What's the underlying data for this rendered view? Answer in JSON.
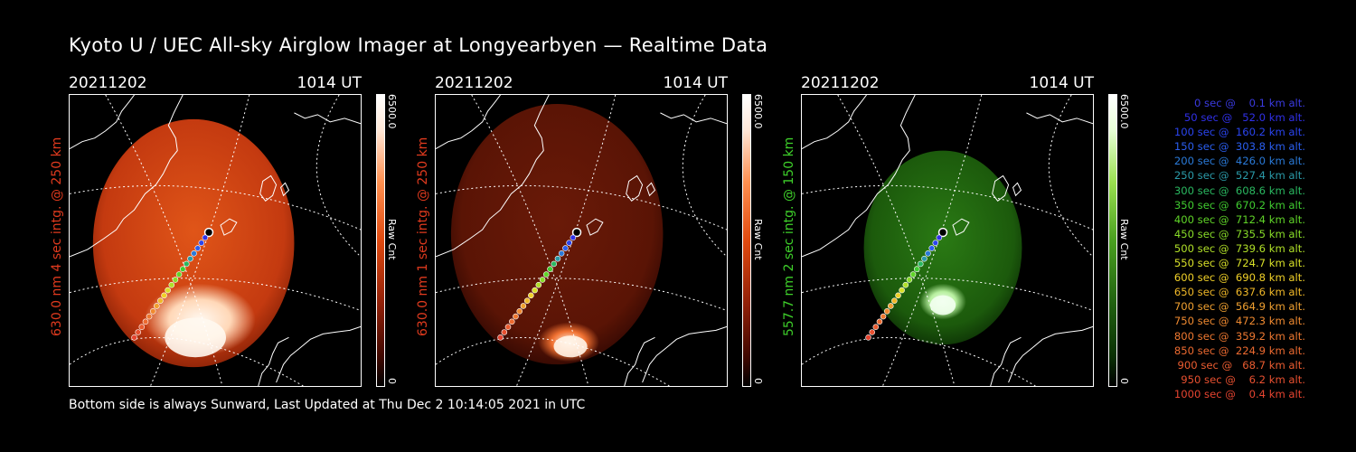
{
  "title": "Kyoto U / UEC All-sky Airglow Imager at Longyearbyen — Realtime Data",
  "footer": "Bottom side is always Sunward, Last Updated at Thu Dec  2 10:14:05 2021 in UTC",
  "colors": {
    "red_label": "#e03a1e",
    "green_label": "#3ecf2a"
  },
  "panels": [
    {
      "date": "20211202",
      "time": "1014 UT",
      "side_label": "630.0 nm  4 sec intg. @ 250 km",
      "colorbar_max": "6500.0",
      "colorbar_unit": "Raw Cnt",
      "colorbar_min": "0",
      "scheme": "red-bright",
      "label_color": "#e03a1e"
    },
    {
      "date": "20211202",
      "time": "1014 UT",
      "side_label": "630.0 nm  1 sec intg. @ 250 km",
      "colorbar_max": "6500.0",
      "colorbar_unit": "Raw Cnt",
      "colorbar_min": "0",
      "scheme": "red-dim",
      "label_color": "#e03a1e"
    },
    {
      "date": "20211202",
      "time": "1014 UT",
      "side_label": "557.7 nm  2 sec intg. @ 150 km",
      "colorbar_max": "6500.0",
      "colorbar_unit": "Raw Cnt",
      "colorbar_min": "0",
      "scheme": "green",
      "label_color": "#3ecf2a"
    }
  ],
  "legend": [
    {
      "text": "   0 sec @    0.1 km alt.",
      "color": "#3a3ae0"
    },
    {
      "text": "  50 sec @   52.0 km alt.",
      "color": "#3030e8"
    },
    {
      "text": " 100 sec @  160.2 km alt.",
      "color": "#2a44ee"
    },
    {
      "text": " 150 sec @  303.8 km alt.",
      "color": "#2a5ef0"
    },
    {
      "text": " 200 sec @  426.0 km alt.",
      "color": "#2a7ad8"
    },
    {
      "text": " 250 sec @  527.4 km alt.",
      "color": "#2a9aa8"
    },
    {
      "text": " 300 sec @  608.6 km alt.",
      "color": "#2ab860"
    },
    {
      "text": " 350 sec @  670.2 km alt.",
      "color": "#40cc30"
    },
    {
      "text": " 400 sec @  712.4 km alt.",
      "color": "#60d428"
    },
    {
      "text": " 450 sec @  735.5 km alt.",
      "color": "#88dc28"
    },
    {
      "text": " 500 sec @  739.6 km alt.",
      "color": "#b0e028"
    },
    {
      "text": " 550 sec @  724.7 km alt.",
      "color": "#d8e028"
    },
    {
      "text": " 600 sec @  690.8 km alt.",
      "color": "#f0d028"
    },
    {
      "text": " 650 sec @  637.6 km alt.",
      "color": "#f0b828"
    },
    {
      "text": " 700 sec @  564.9 km alt.",
      "color": "#f0a030"
    },
    {
      "text": " 750 sec @  472.3 km alt.",
      "color": "#f08a30"
    },
    {
      "text": " 800 sec @  359.2 km alt.",
      "color": "#ee7830"
    },
    {
      "text": " 850 sec @  224.9 km alt.",
      "color": "#ec6a30"
    },
    {
      "text": " 900 sec @   68.7 km alt.",
      "color": "#ea5c30"
    },
    {
      "text": " 950 sec @    6.2 km alt.",
      "color": "#e85030"
    },
    {
      "text": "1000 sec @    0.4 km alt.",
      "color": "#e64430"
    }
  ]
}
